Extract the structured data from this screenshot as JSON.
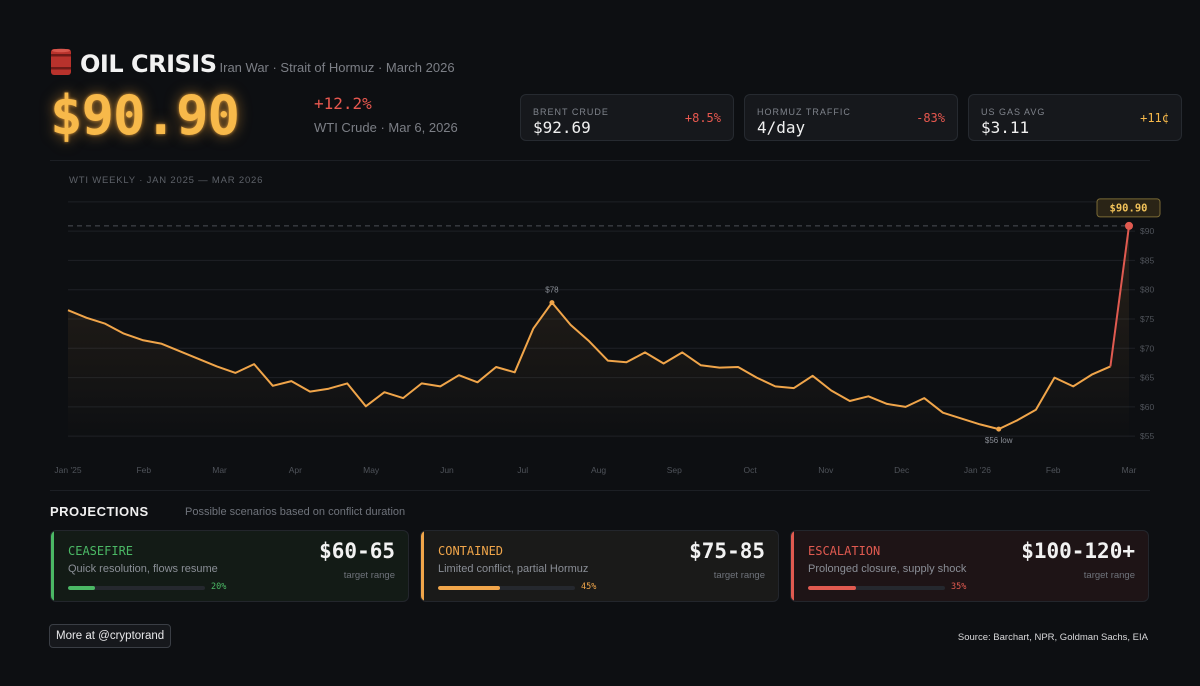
{
  "header": {
    "title": "OIL CRISIS",
    "subtitle": "Iran War · Strait of Hormuz · March 2026"
  },
  "hero": {
    "price": "$90.90",
    "change": "+12.2%",
    "caption": "WTI Crude · Mar 6, 2026"
  },
  "stats": [
    {
      "label": "BRENT CRUDE",
      "value": "$92.69",
      "change": "+8.5%",
      "color": "#e8584f"
    },
    {
      "label": "HORMUZ TRAFFIC",
      "value": "4/day",
      "change": "-83%",
      "color": "#e8584f"
    },
    {
      "label": "US GAS AVG",
      "value": "$3.11",
      "change": "+11¢",
      "color": "#f7b94a"
    }
  ],
  "chart_data": {
    "type": "line",
    "title": "WTI WEEKLY · JAN 2025 — MAR 2026",
    "x_labels": [
      "Jan '25",
      "Feb",
      "Mar",
      "Apr",
      "May",
      "Jun",
      "Jul",
      "Aug",
      "Sep",
      "Oct",
      "Nov",
      "Dec",
      "Jan '26",
      "Feb",
      "Mar"
    ],
    "y_ticks": [
      55,
      60,
      65,
      70,
      75,
      80,
      85,
      90,
      95
    ],
    "ylim": [
      54,
      96
    ],
    "values": [
      76.5,
      75.2,
      74.2,
      72.5,
      71.4,
      70.8,
      69.5,
      68.2,
      66.9,
      65.8,
      67.3,
      63.6,
      64.4,
      62.6,
      63.1,
      64.0,
      60.1,
      62.5,
      61.5,
      64.0,
      63.5,
      65.4,
      64.2,
      66.8,
      65.9,
      73.4,
      77.8,
      74.0,
      71.2,
      67.9,
      67.6,
      69.3,
      67.4,
      69.3,
      67.1,
      66.7,
      66.8,
      65.0,
      63.5,
      63.2,
      65.3,
      62.8,
      61.0,
      61.8,
      60.5,
      60.0,
      61.5,
      59.0,
      58.0,
      57.0,
      56.2,
      57.7,
      59.5,
      65.0,
      63.5,
      65.5,
      66.9,
      90.9
    ],
    "escalation_start_index": 56,
    "reference_value": 90.9,
    "colors": {
      "line": "#f0a54a",
      "spike": "#e05a50",
      "grid": "#1e2126"
    },
    "annotations": [
      {
        "index": 26,
        "text": "$78"
      },
      {
        "index": 50,
        "text": "$56 low"
      },
      {
        "index": 57,
        "text": "$90.90"
      }
    ]
  },
  "projections": {
    "title": "PROJECTIONS",
    "subtitle": "Possible scenarios based on conflict duration",
    "cards": [
      {
        "name": "CEASEFIRE",
        "desc": "Quick resolution, flows resume",
        "range": "$60-65",
        "range_label": "target range",
        "pct_label": "20%",
        "pct": 0.2,
        "color": "#4bb865",
        "bg": "#131b16"
      },
      {
        "name": "CONTAINED",
        "desc": "Limited conflict, partial Hormuz",
        "range": "$75-85",
        "range_label": "target range",
        "pct_label": "45%",
        "pct": 0.45,
        "color": "#f0a54a",
        "bg": "#1a1a19"
      },
      {
        "name": "ESCALATION",
        "desc": "Prolonged closure, supply shock",
        "range": "$100-120+",
        "range_label": "target range",
        "pct_label": "35%",
        "pct": 0.35,
        "color": "#e05a50",
        "bg": "#1e1416"
      }
    ]
  },
  "footer": {
    "more": "More at @cryptorand",
    "source": "Source: Barchart, NPR, Goldman Sachs, EIA"
  }
}
